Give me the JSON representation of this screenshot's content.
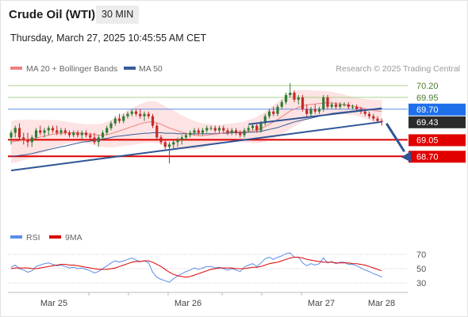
{
  "header": {
    "title": "Crude Oil (WTI)",
    "timeframe": "30 MIN",
    "timestamp": "Thursday, March 27, 2025 10:45:55 AM CET"
  },
  "legend": {
    "ma20_bb": "MA 20 + Bollinger Bands",
    "ma50": "MA 50",
    "credit": "Research © 2025 Trading Central",
    "rsi": "RSI",
    "ma9": "9MA"
  },
  "colors": {
    "ma20": "#f08080",
    "band_fill": "#fde3e3",
    "ma50": "#3a5c99",
    "trend": "#2f5596",
    "support": "#dd0000",
    "resistance_green": "#a8d08d",
    "resistance_blue": "#5b8de8",
    "current": "#2b2b2b",
    "candle_up": "#2e7d32",
    "candle_down": "#c62828",
    "rsi": "#5b8de8",
    "rsi_ma": "#dd0000"
  },
  "chart_data": [
    {
      "type": "candlestick",
      "title": "Crude Oil (WTI)",
      "timeframe": "30 MIN",
      "x_ticks": [
        "Mar 25",
        "Mar 26",
        "Mar 27",
        "Mar 28"
      ],
      "ylim": [
        68.4,
        70.4
      ],
      "levels": [
        {
          "value": 70.2,
          "label": "70.20",
          "kind": "resistance"
        },
        {
          "value": 69.95,
          "label": "69.95",
          "kind": "resistance"
        },
        {
          "value": 69.7,
          "label": "69.70",
          "kind": "pivot"
        },
        {
          "value": 69.43,
          "label": "69.43",
          "kind": "current"
        },
        {
          "value": 69.05,
          "label": "69.05",
          "kind": "support"
        },
        {
          "value": 68.7,
          "label": "68.70",
          "kind": "support"
        }
      ],
      "ohlc": [
        [
          69.1,
          69.25,
          68.95,
          69.2
        ],
        [
          69.2,
          69.35,
          69.1,
          69.3
        ],
        [
          69.3,
          69.4,
          69.05,
          69.1
        ],
        [
          69.1,
          69.2,
          68.95,
          69.05
        ],
        [
          69.05,
          69.2,
          68.9,
          69.0
        ],
        [
          69.0,
          69.15,
          68.9,
          69.1
        ],
        [
          69.1,
          69.3,
          69.05,
          69.25
        ],
        [
          69.25,
          69.35,
          69.15,
          69.2
        ],
        [
          69.2,
          69.3,
          69.1,
          69.25
        ],
        [
          69.25,
          69.35,
          69.15,
          69.3
        ],
        [
          69.3,
          69.35,
          69.2,
          69.25
        ],
        [
          69.25,
          69.35,
          69.15,
          69.2
        ],
        [
          69.2,
          69.3,
          69.15,
          69.25
        ],
        [
          69.25,
          69.3,
          69.15,
          69.2
        ],
        [
          69.2,
          69.25,
          69.1,
          69.15
        ],
        [
          69.15,
          69.25,
          69.1,
          69.2
        ],
        [
          69.2,
          69.25,
          69.1,
          69.15
        ],
        [
          69.15,
          69.25,
          69.05,
          69.2
        ],
        [
          69.2,
          69.25,
          69.1,
          69.15
        ],
        [
          69.15,
          69.2,
          69.05,
          69.1
        ],
        [
          69.1,
          69.2,
          68.95,
          69.0
        ],
        [
          69.0,
          69.15,
          68.9,
          69.1
        ],
        [
          69.1,
          69.25,
          69.05,
          69.2
        ],
        [
          69.2,
          69.35,
          69.15,
          69.3
        ],
        [
          69.3,
          69.45,
          69.25,
          69.4
        ],
        [
          69.4,
          69.55,
          69.35,
          69.5
        ],
        [
          69.5,
          69.6,
          69.4,
          69.45
        ],
        [
          69.45,
          69.6,
          69.4,
          69.55
        ],
        [
          69.55,
          69.65,
          69.5,
          69.6
        ],
        [
          69.6,
          69.7,
          69.55,
          69.65
        ],
        [
          69.65,
          69.7,
          69.55,
          69.6
        ],
        [
          69.6,
          69.7,
          69.5,
          69.55
        ],
        [
          69.55,
          69.65,
          69.45,
          69.6
        ],
        [
          69.6,
          69.65,
          69.5,
          69.55
        ],
        [
          69.55,
          69.6,
          69.3,
          69.35
        ],
        [
          69.35,
          69.4,
          69.05,
          69.1
        ],
        [
          69.1,
          69.15,
          68.95,
          69.0
        ],
        [
          69.0,
          69.05,
          68.85,
          68.9
        ],
        [
          68.9,
          69.0,
          68.55,
          68.95
        ],
        [
          68.95,
          69.05,
          68.85,
          69.0
        ],
        [
          69.0,
          69.1,
          68.9,
          69.05
        ],
        [
          69.05,
          69.15,
          68.95,
          69.1
        ],
        [
          69.1,
          69.2,
          69.05,
          69.15
        ],
        [
          69.15,
          69.25,
          69.1,
          69.2
        ],
        [
          69.2,
          69.3,
          69.15,
          69.25
        ],
        [
          69.25,
          69.3,
          69.15,
          69.2
        ],
        [
          69.2,
          69.3,
          69.15,
          69.25
        ],
        [
          69.25,
          69.35,
          69.2,
          69.3
        ],
        [
          69.3,
          69.35,
          69.25,
          69.3
        ],
        [
          69.3,
          69.35,
          69.2,
          69.25
        ],
        [
          69.25,
          69.35,
          69.2,
          69.3
        ],
        [
          69.3,
          69.35,
          69.2,
          69.25
        ],
        [
          69.25,
          69.3,
          69.15,
          69.2
        ],
        [
          69.2,
          69.3,
          69.15,
          69.25
        ],
        [
          69.25,
          69.3,
          69.15,
          69.2
        ],
        [
          69.2,
          69.25,
          69.1,
          69.15
        ],
        [
          69.15,
          69.3,
          69.1,
          69.25
        ],
        [
          69.25,
          69.35,
          69.2,
          69.3
        ],
        [
          69.3,
          69.4,
          69.25,
          69.35
        ],
        [
          69.35,
          69.4,
          69.2,
          69.25
        ],
        [
          69.25,
          69.45,
          69.2,
          69.4
        ],
        [
          69.4,
          69.6,
          69.35,
          69.55
        ],
        [
          69.55,
          69.7,
          69.5,
          69.65
        ],
        [
          69.65,
          69.75,
          69.55,
          69.6
        ],
        [
          69.6,
          69.8,
          69.55,
          69.75
        ],
        [
          69.75,
          69.9,
          69.7,
          69.85
        ],
        [
          69.85,
          70.05,
          69.8,
          70.0
        ],
        [
          70.0,
          70.25,
          69.95,
          70.05
        ],
        [
          70.05,
          70.1,
          69.85,
          69.9
        ],
        [
          69.9,
          70.0,
          69.8,
          69.95
        ],
        [
          69.95,
          70.0,
          69.65,
          69.7
        ],
        [
          69.7,
          69.8,
          69.55,
          69.6
        ],
        [
          69.6,
          69.75,
          69.55,
          69.7
        ],
        [
          69.7,
          69.8,
          69.6,
          69.65
        ],
        [
          69.65,
          69.75,
          69.6,
          69.7
        ],
        [
          69.7,
          70.0,
          69.65,
          69.95
        ],
        [
          69.95,
          70.0,
          69.7,
          69.75
        ],
        [
          69.75,
          69.85,
          69.7,
          69.8
        ],
        [
          69.8,
          69.85,
          69.7,
          69.75
        ],
        [
          69.75,
          69.85,
          69.7,
          69.8
        ],
        [
          69.8,
          69.85,
          69.75,
          69.8
        ],
        [
          69.8,
          69.85,
          69.7,
          69.75
        ],
        [
          69.75,
          69.8,
          69.7,
          69.75
        ],
        [
          69.75,
          69.8,
          69.65,
          69.7
        ],
        [
          69.7,
          69.75,
          69.6,
          69.65
        ],
        [
          69.65,
          69.7,
          69.55,
          69.6
        ],
        [
          69.6,
          69.65,
          69.5,
          69.55
        ],
        [
          69.55,
          69.6,
          69.45,
          69.5
        ],
        [
          69.5,
          69.55,
          69.4,
          69.45
        ],
        [
          69.45,
          69.5,
          69.35,
          69.43
        ]
      ],
      "ma20": [
        69.0,
        69.02,
        69.03,
        69.05,
        69.06,
        69.07,
        69.09,
        69.11,
        69.13,
        69.15,
        69.17,
        69.18,
        69.19,
        69.2,
        69.2,
        69.2,
        69.2,
        69.19,
        69.18,
        69.17,
        69.16,
        69.15,
        69.15,
        69.16,
        69.18,
        69.21,
        69.24,
        69.27,
        69.3,
        69.33,
        69.36,
        69.39,
        69.41,
        69.43,
        69.43,
        69.41,
        69.38,
        69.34,
        69.3,
        69.27,
        69.24,
        69.21,
        69.19,
        69.17,
        69.15,
        69.14,
        69.14,
        69.15,
        69.16,
        69.17,
        69.18,
        69.2,
        69.21,
        69.22,
        69.22,
        69.22,
        69.22,
        69.23,
        69.24,
        69.26,
        69.29,
        69.33,
        69.38,
        69.43,
        69.48,
        69.54,
        69.6,
        69.66,
        69.7,
        69.74,
        69.77,
        69.79,
        69.8,
        69.81,
        69.82,
        69.83,
        69.83,
        69.83,
        69.82,
        69.81,
        69.8,
        69.78,
        69.77,
        69.75,
        69.73,
        69.71,
        69.69,
        69.67,
        69.66,
        69.65
      ],
      "ma50": [
        68.7,
        68.71,
        68.72,
        68.73,
        68.74,
        68.76,
        68.78,
        68.8,
        68.82,
        68.84,
        68.86,
        68.88,
        68.9,
        68.92,
        68.94,
        68.96,
        68.98,
        69.0,
        69.01,
        69.02,
        69.04,
        69.05,
        69.07,
        69.08,
        69.1,
        69.12,
        69.13,
        69.14,
        69.15,
        69.16,
        69.17,
        69.18,
        69.19,
        69.19,
        69.2,
        69.2,
        69.2,
        69.19,
        69.19,
        69.19,
        69.18,
        69.18,
        69.18,
        69.18,
        69.18,
        69.18,
        69.18,
        69.18,
        69.18,
        69.18,
        69.19,
        69.19,
        69.19,
        69.2,
        69.2,
        69.2,
        69.2,
        69.21,
        69.21,
        69.22,
        69.23,
        69.25,
        69.27,
        69.29,
        69.31,
        69.34,
        69.37,
        69.4,
        69.43,
        69.45,
        69.47,
        69.49,
        69.51,
        69.53,
        69.55,
        69.57,
        69.59,
        69.61,
        69.62,
        69.63,
        69.64,
        69.65,
        69.66,
        69.67,
        69.68,
        69.68,
        69.69,
        69.69,
        69.69,
        69.7
      ],
      "band_width": [
        0.45,
        0.45,
        0.44,
        0.43,
        0.42,
        0.4,
        0.38,
        0.36,
        0.34,
        0.32,
        0.3,
        0.28,
        0.26,
        0.24,
        0.22,
        0.21,
        0.2,
        0.2,
        0.2,
        0.21,
        0.22,
        0.23,
        0.25,
        0.27,
        0.29,
        0.31,
        0.33,
        0.35,
        0.37,
        0.39,
        0.41,
        0.42,
        0.43,
        0.44,
        0.44,
        0.44,
        0.43,
        0.42,
        0.41,
        0.4,
        0.38,
        0.36,
        0.34,
        0.32,
        0.3,
        0.28,
        0.26,
        0.24,
        0.22,
        0.2,
        0.19,
        0.18,
        0.18,
        0.18,
        0.19,
        0.2,
        0.22,
        0.24,
        0.26,
        0.28,
        0.3,
        0.32,
        0.34,
        0.36,
        0.37,
        0.38,
        0.38,
        0.38,
        0.37,
        0.36,
        0.34,
        0.32,
        0.3,
        0.28,
        0.27,
        0.26,
        0.25,
        0.24,
        0.23,
        0.22,
        0.21,
        0.2,
        0.19,
        0.19,
        0.2,
        0.21,
        0.22,
        0.23,
        0.24,
        0.25
      ],
      "trendlines": [
        {
          "from": [
            0,
            68.4
          ],
          "to": [
            89,
            69.43
          ]
        },
        {
          "from": [
            57,
            69.38
          ],
          "to": [
            89,
            69.72
          ]
        }
      ],
      "projection": {
        "from": [
          89,
          69.43
        ],
        "to": [
          95,
          68.7
        ]
      }
    },
    {
      "type": "line",
      "title": "RSI",
      "ylim": [
        25,
        75
      ],
      "y_ticks": [
        70,
        50,
        30
      ],
      "series": [
        {
          "name": "RSI",
          "values": [
            52,
            55,
            50,
            48,
            45,
            47,
            53,
            55,
            57,
            58,
            56,
            54,
            55,
            53,
            51,
            52,
            50,
            51,
            49,
            47,
            44,
            46,
            50,
            54,
            58,
            61,
            59,
            61,
            63,
            65,
            62,
            60,
            61,
            58,
            45,
            38,
            35,
            33,
            31,
            36,
            40,
            43,
            46,
            48,
            51,
            49,
            51,
            53,
            53,
            51,
            52,
            50,
            48,
            50,
            48,
            46,
            52,
            55,
            57,
            53,
            58,
            64,
            66,
            63,
            66,
            68,
            71,
            72,
            66,
            66,
            58,
            54,
            57,
            55,
            57,
            65,
            58,
            60,
            57,
            59,
            59,
            56,
            56,
            54,
            51,
            48,
            46,
            43,
            41,
            38
          ]
        },
        {
          "name": "9MA",
          "values": [
            50,
            51,
            51,
            51,
            51,
            50,
            50,
            51,
            52,
            53,
            54,
            55,
            56,
            56,
            55,
            55,
            54,
            53,
            52,
            51,
            50,
            49,
            49,
            49,
            50,
            51,
            53,
            55,
            57,
            59,
            60,
            60,
            61,
            61,
            59,
            56,
            53,
            49,
            45,
            42,
            40,
            39,
            38,
            39,
            41,
            43,
            45,
            47,
            49,
            50,
            51,
            51,
            51,
            51,
            50,
            50,
            50,
            51,
            52,
            52,
            53,
            55,
            57,
            58,
            59,
            61,
            63,
            65,
            66,
            66,
            65,
            63,
            62,
            61,
            60,
            59,
            59,
            59,
            58,
            58,
            58,
            58,
            57,
            57,
            56,
            55,
            53,
            51,
            49,
            47
          ]
        }
      ]
    }
  ]
}
